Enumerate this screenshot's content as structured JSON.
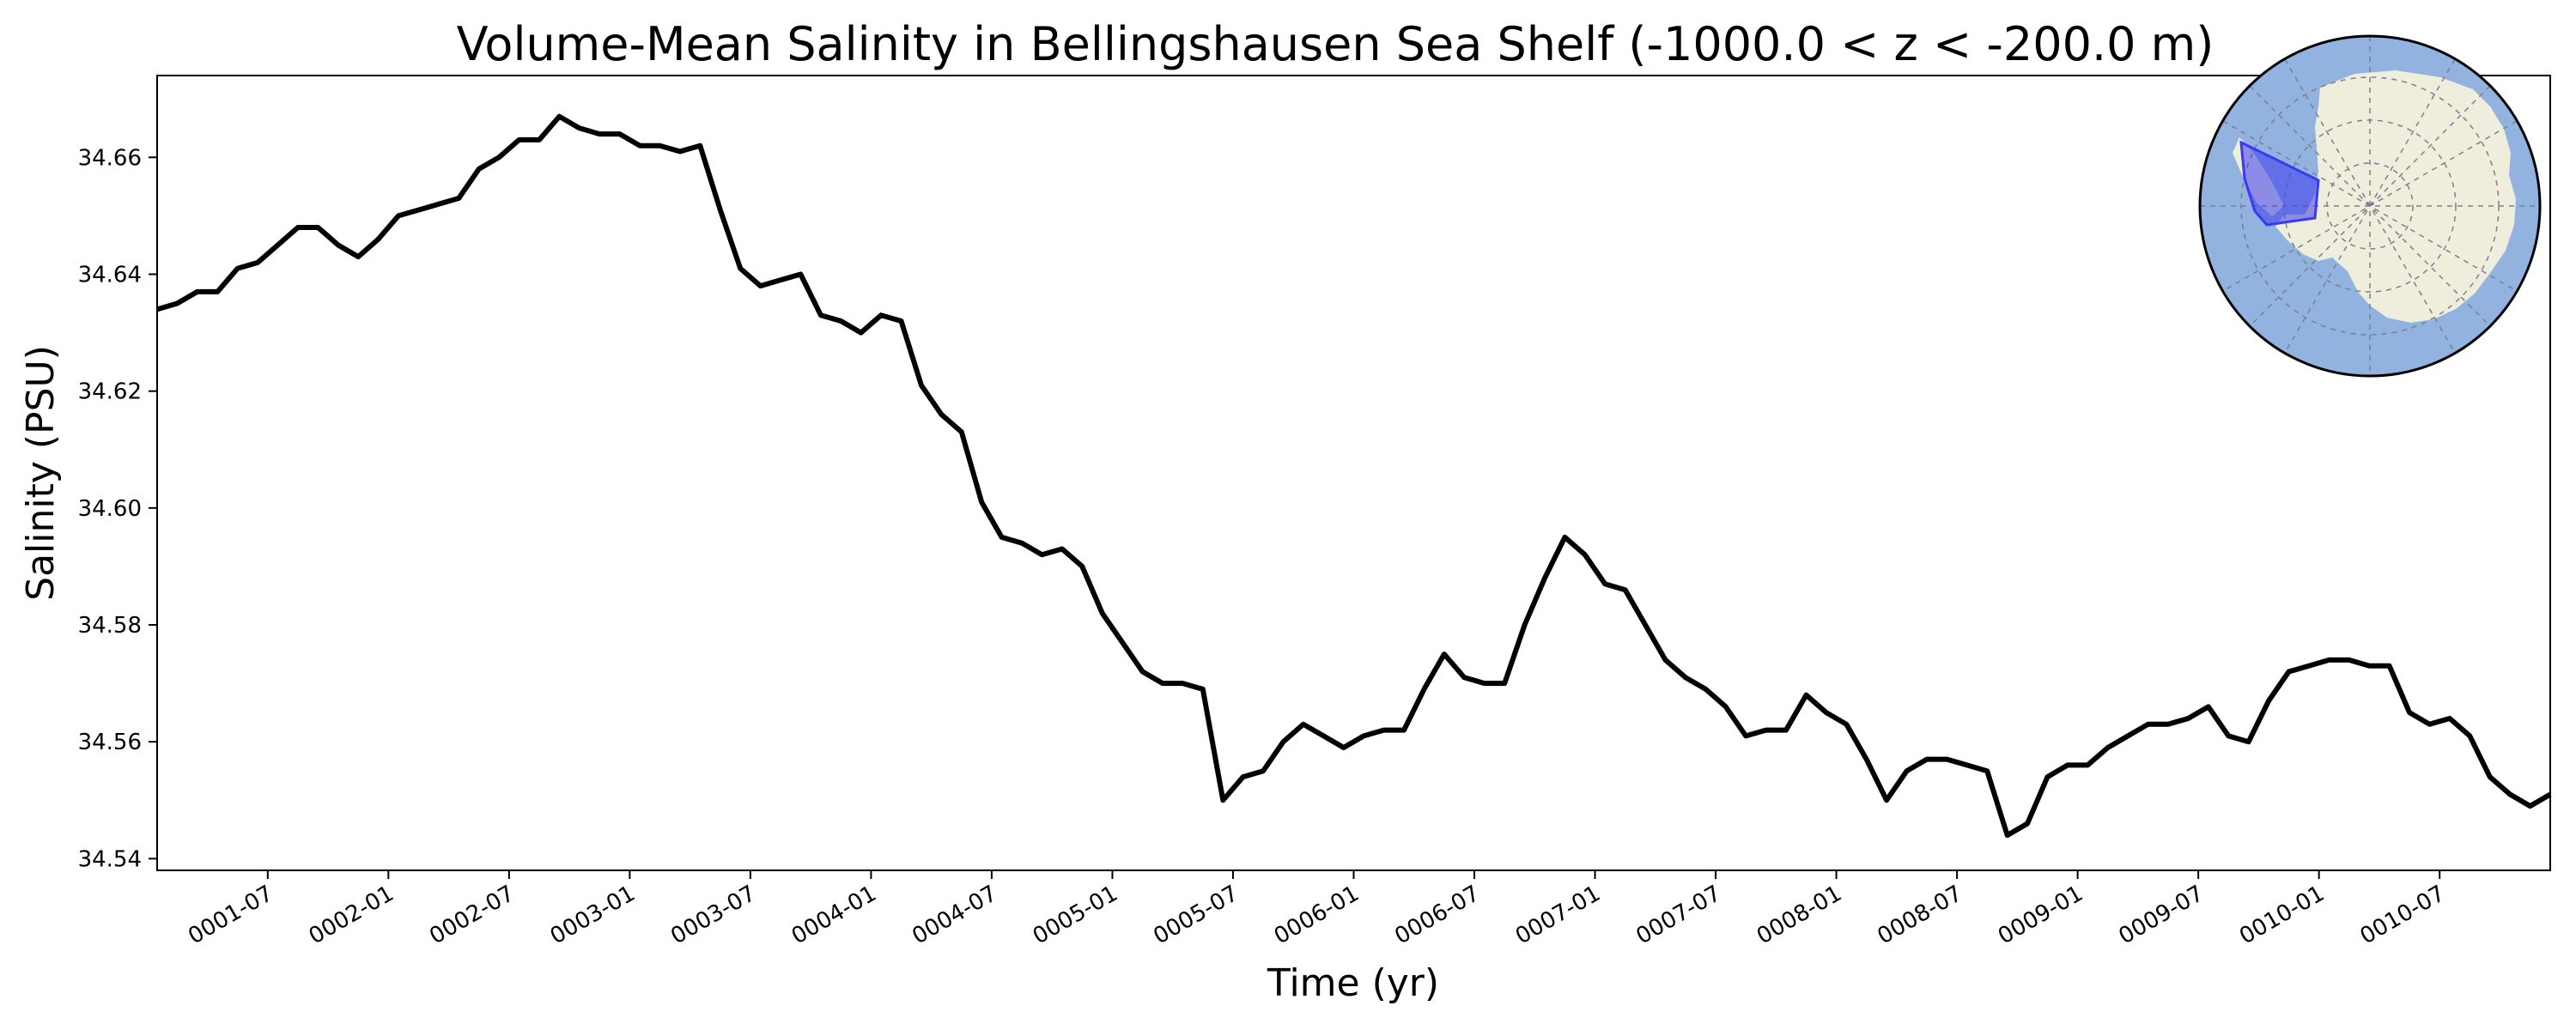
{
  "chart_data": {
    "type": "line",
    "title": "Volume-Mean Salinity in Bellingshausen Sea Shelf (-1000.0 < z < -200.0 m)",
    "xlabel": "Time (yr)",
    "ylabel": "Salinity (PSU)",
    "xlim": [
      "0001-01-16",
      "0010-12-16"
    ],
    "ylim": [
      34.538,
      34.674
    ],
    "grid": false,
    "line_color": "#000000",
    "x_ticks": [
      "0001-07",
      "0002-01",
      "0002-07",
      "0003-01",
      "0003-07",
      "0004-01",
      "0004-07",
      "0005-01",
      "0005-07",
      "0006-01",
      "0006-07",
      "0007-01",
      "0007-07",
      "0008-01",
      "0008-07",
      "0009-01",
      "0009-07",
      "0010-01",
      "0010-07"
    ],
    "y_ticks": [
      "34.54",
      "34.56",
      "34.58",
      "34.60",
      "34.62",
      "34.64",
      "34.66"
    ],
    "series": [
      {
        "x": [
          "0001-01",
          "0001-02",
          "0001-03",
          "0001-04",
          "0001-05",
          "0001-06",
          "0001-07",
          "0001-08",
          "0001-09",
          "0001-10",
          "0001-11",
          "0001-12",
          "0002-01",
          "0002-02",
          "0002-03",
          "0002-04",
          "0002-05",
          "0002-06",
          "0002-07",
          "0002-08",
          "0002-09",
          "0002-10",
          "0002-11",
          "0002-12",
          "0003-01",
          "0003-02",
          "0003-03",
          "0003-04",
          "0003-05",
          "0003-06",
          "0003-07",
          "0003-08",
          "0003-09",
          "0003-10",
          "0003-11",
          "0003-12",
          "0004-01",
          "0004-02",
          "0004-03",
          "0004-04",
          "0004-05",
          "0004-06",
          "0004-07",
          "0004-08",
          "0004-09",
          "0004-10",
          "0004-11",
          "0004-12",
          "0005-01",
          "0005-02",
          "0005-03",
          "0005-04",
          "0005-05",
          "0005-06",
          "0005-07",
          "0005-08",
          "0005-09",
          "0005-10",
          "0005-11",
          "0005-12",
          "0006-01",
          "0006-02",
          "0006-03",
          "0006-04",
          "0006-05",
          "0006-06",
          "0006-07",
          "0006-08",
          "0006-09",
          "0006-10",
          "0006-11",
          "0006-12",
          "0007-01",
          "0007-02",
          "0007-03",
          "0007-04",
          "0007-05",
          "0007-06",
          "0007-07",
          "0007-08",
          "0007-09",
          "0007-10",
          "0007-11",
          "0007-12",
          "0008-01",
          "0008-02",
          "0008-03",
          "0008-04",
          "0008-05",
          "0008-06",
          "0008-07",
          "0008-08",
          "0008-09",
          "0008-10",
          "0008-11",
          "0008-12",
          "0009-01",
          "0009-02",
          "0009-03",
          "0009-04",
          "0009-05",
          "0009-06",
          "0009-07",
          "0009-08",
          "0009-09",
          "0009-10",
          "0009-11",
          "0009-12",
          "0010-01",
          "0010-02",
          "0010-03",
          "0010-04",
          "0010-05",
          "0010-06",
          "0010-07",
          "0010-08",
          "0010-09",
          "0010-10",
          "0010-11",
          "0010-12"
        ],
        "y": [
          34.634,
          34.635,
          34.637,
          34.637,
          34.641,
          34.642,
          34.645,
          34.648,
          34.648,
          34.645,
          34.643,
          34.646,
          34.65,
          34.651,
          34.652,
          34.653,
          34.658,
          34.66,
          34.663,
          34.663,
          34.667,
          34.665,
          34.664,
          34.664,
          34.662,
          34.662,
          34.661,
          34.662,
          34.651,
          34.641,
          34.638,
          34.639,
          34.64,
          34.633,
          34.632,
          34.63,
          34.633,
          34.632,
          34.621,
          34.616,
          34.613,
          34.601,
          34.595,
          34.594,
          34.592,
          34.593,
          34.59,
          34.582,
          34.577,
          34.572,
          34.57,
          34.57,
          34.569,
          34.55,
          34.554,
          34.555,
          34.56,
          34.563,
          34.561,
          34.559,
          34.561,
          34.562,
          34.562,
          34.569,
          34.575,
          34.571,
          34.57,
          34.57,
          34.58,
          34.588,
          34.595,
          34.592,
          34.587,
          34.586,
          34.58,
          34.574,
          34.571,
          34.569,
          34.566,
          34.561,
          34.562,
          34.562,
          34.568,
          34.565,
          34.563,
          34.557,
          34.55,
          34.555,
          34.557,
          34.557,
          34.556,
          34.555,
          34.544,
          34.546,
          34.554,
          34.556,
          34.556,
          34.559,
          34.561,
          34.563,
          34.563,
          34.564,
          34.566,
          34.561,
          34.56,
          34.567,
          34.572,
          34.573,
          34.574,
          34.574,
          34.573,
          34.573,
          34.565,
          34.563,
          34.564,
          34.561,
          34.554,
          34.551,
          34.549,
          34.551
        ]
      }
    ],
    "inset_map": {
      "ocean_color": "#92b2e0",
      "land_color": "#efeedc",
      "region_color": "#3a3aee"
    }
  }
}
